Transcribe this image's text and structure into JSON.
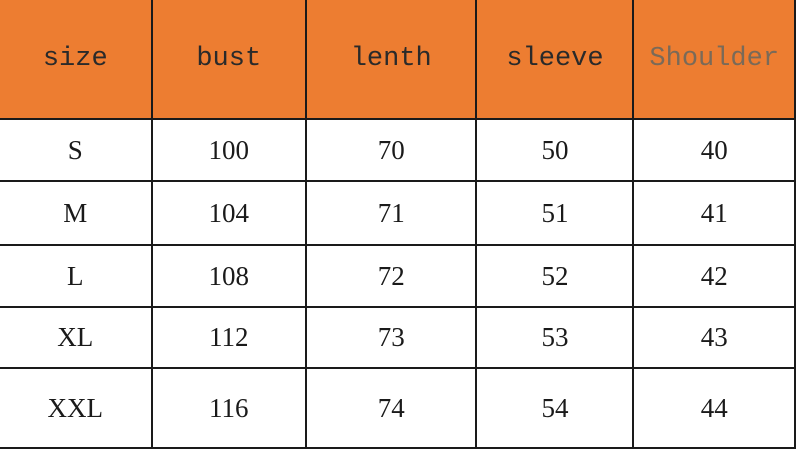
{
  "table": {
    "header_color": "#ED7D31",
    "headers": [
      "size",
      "bust",
      "lenth",
      "sleeve",
      "Shoulder"
    ],
    "rows": [
      [
        "S",
        "100",
        "70",
        "50",
        "40"
      ],
      [
        "M",
        "104",
        "71",
        "51",
        "41"
      ],
      [
        "L",
        "108",
        "72",
        "52",
        "42"
      ],
      [
        "XL",
        "112",
        "73",
        "53",
        "43"
      ],
      [
        "XXL",
        "116",
        "74",
        "54",
        "44"
      ]
    ]
  }
}
